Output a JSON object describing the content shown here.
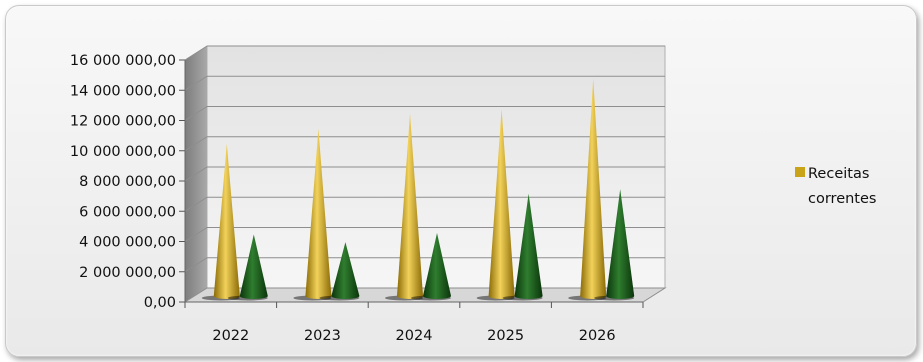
{
  "chart_data": {
    "type": "bar",
    "style": "3d-cone",
    "categories": [
      "2022",
      "2023",
      "2024",
      "2025",
      "2026"
    ],
    "series": [
      {
        "name": "Receitas correntes",
        "color": "#c9a318",
        "values": [
          10000000,
          11000000,
          12000000,
          12300000,
          14300000
        ]
      },
      {
        "name": "",
        "color": "#1e5a1e",
        "values": [
          4000000,
          3500000,
          4100000,
          6700000,
          7000000
        ]
      }
    ],
    "y_ticks": [
      "0,00",
      "2 000 000,00",
      "4 000 000,00",
      "6 000 000,00",
      "8 000 000,00",
      "10 000 000,00",
      "12 000 000,00",
      "14 000 000,00",
      "16 000 000,00"
    ],
    "ylim": [
      0,
      16000000
    ],
    "grid": true,
    "legend": {
      "placement": "right",
      "entries": [
        "Receitas",
        "correntes"
      ]
    },
    "title": "",
    "xlabel": "",
    "ylabel": ""
  }
}
